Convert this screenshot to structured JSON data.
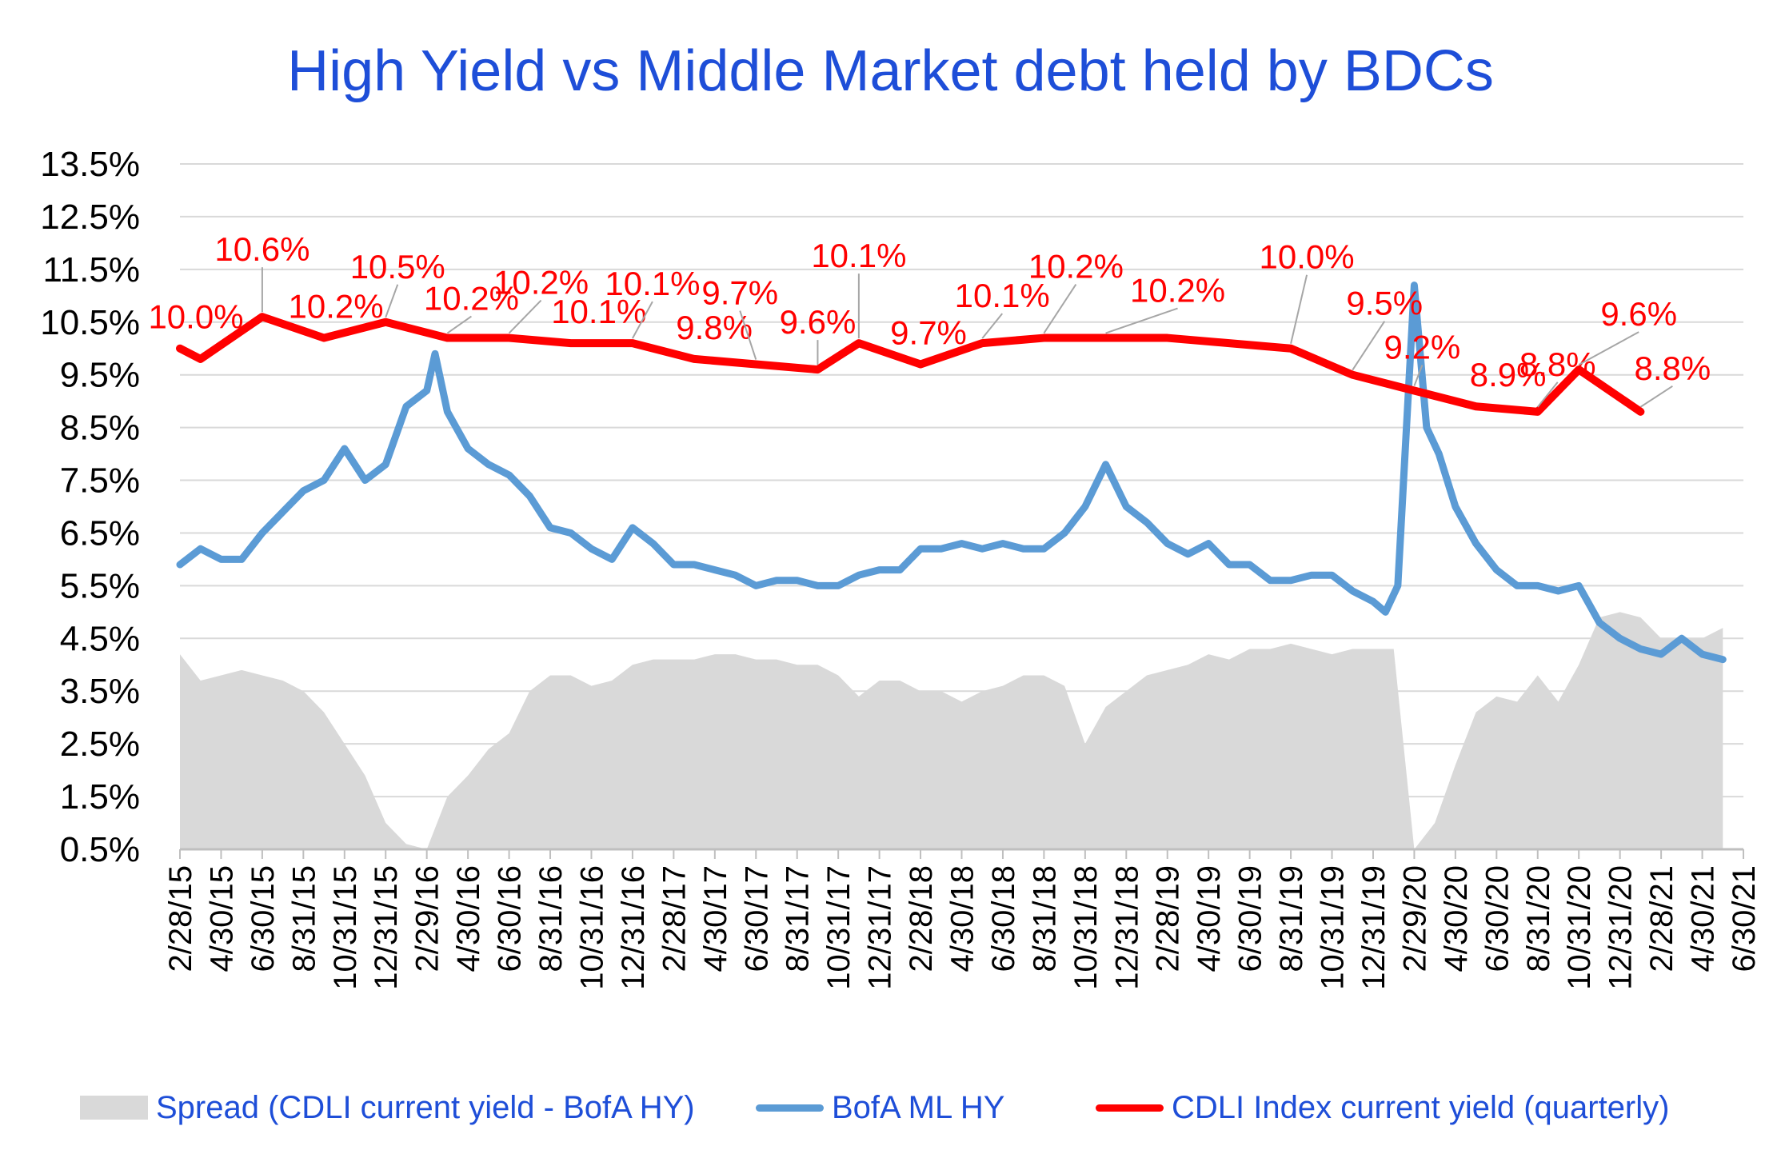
{
  "chart_data": {
    "type": "line",
    "title": "High Yield  vs  Middle Market debt held by BDCs",
    "ylabel": "",
    "xlabel": "",
    "ylim": [
      0.5,
      13.5
    ],
    "yticks": [
      "13.5%",
      "12.5%",
      "11.5%",
      "10.5%",
      "9.5%",
      "8.5%",
      "7.5%",
      "6.5%",
      "5.5%",
      "4.5%",
      "3.5%",
      "2.5%",
      "1.5%",
      "0.5%"
    ],
    "xticks": [
      "2/28/15",
      "4/30/15",
      "6/30/15",
      "8/31/15",
      "10/31/15",
      "12/31/15",
      "2/29/16",
      "4/30/16",
      "6/30/16",
      "8/31/16",
      "10/31/16",
      "12/31/16",
      "2/28/17",
      "4/30/17",
      "6/30/17",
      "8/31/17",
      "10/31/17",
      "12/31/17",
      "2/28/18",
      "4/30/18",
      "6/30/18",
      "8/31/18",
      "10/31/18",
      "12/31/18",
      "2/28/19",
      "4/30/19",
      "6/30/19",
      "8/31/19",
      "10/31/19",
      "12/31/19",
      "2/29/20",
      "4/30/20",
      "6/30/20",
      "8/31/20",
      "10/31/20",
      "12/31/20",
      "2/28/21",
      "4/30/21",
      "6/30/21"
    ],
    "grid": true,
    "legend_position": "bottom",
    "colors": {
      "spread": "#d9d9d9",
      "hy": "#5b9bd5",
      "cdli": "#ff0000"
    },
    "series": [
      {
        "name": "Spread (CDLI current yield - BofA HY)",
        "kind": "area",
        "x": [
          0,
          0.5,
          1,
          1.5,
          2,
          2.5,
          3,
          3.5,
          4,
          4.5,
          5,
          5.5,
          6,
          6.5,
          7,
          7.5,
          8,
          8.5,
          9,
          9.5,
          10,
          10.5,
          11,
          11.5,
          12,
          12.5,
          13,
          13.5,
          14,
          14.5,
          15,
          15.5,
          16,
          16.5,
          17,
          17.5,
          18,
          18.5,
          19,
          19.5,
          20,
          20.5,
          21,
          21.5,
          22,
          22.5,
          23,
          23.5,
          24,
          24.5,
          25,
          25.5,
          26,
          26.5,
          27,
          27.5,
          28,
          28.5,
          29,
          29.5,
          30,
          30.5,
          31,
          31.5,
          32,
          32.5,
          33,
          33.5,
          34,
          34.5,
          35,
          35.5,
          36,
          36.5,
          37,
          37.5
        ],
        "values": [
          4.2,
          3.7,
          3.8,
          3.9,
          3.8,
          3.7,
          3.5,
          3.1,
          2.5,
          1.9,
          1.0,
          0.6,
          0.5,
          1.5,
          1.9,
          2.4,
          2.7,
          3.5,
          3.8,
          3.8,
          3.6,
          3.7,
          4.0,
          4.1,
          4.1,
          4.1,
          4.2,
          4.2,
          4.1,
          4.1,
          4.0,
          4.0,
          3.8,
          3.4,
          3.7,
          3.7,
          3.5,
          3.5,
          3.3,
          3.5,
          3.6,
          3.8,
          3.8,
          3.6,
          2.5,
          3.2,
          3.5,
          3.8,
          3.9,
          4.0,
          4.2,
          4.1,
          4.3,
          4.3,
          4.4,
          4.3,
          4.2,
          4.3,
          4.3,
          4.3,
          0.5,
          1.0,
          2.1,
          3.1,
          3.4,
          3.3,
          3.8,
          3.3,
          4.0,
          4.9,
          5.0,
          4.9,
          4.5,
          4.5,
          4.5,
          4.7
        ]
      },
      {
        "name": "BofA ML HY",
        "kind": "line",
        "x": [
          0,
          0.5,
          1,
          1.5,
          2,
          2.5,
          3,
          3.5,
          4,
          4.5,
          5,
          5.5,
          6,
          6.2,
          6.5,
          7,
          7.5,
          8,
          8.5,
          9,
          9.5,
          10,
          10.5,
          11,
          11.5,
          12,
          12.5,
          13,
          13.5,
          14,
          14.5,
          15,
          15.5,
          16,
          16.5,
          17,
          17.5,
          18,
          18.5,
          19,
          19.5,
          20,
          20.5,
          21,
          21.5,
          22,
          22.5,
          23,
          23.5,
          24,
          24.5,
          25,
          25.5,
          26,
          26.5,
          27,
          27.5,
          28,
          28.5,
          29,
          29.3,
          29.6,
          30,
          30.3,
          30.6,
          31,
          31.5,
          32,
          32.5,
          33,
          33.5,
          34,
          34.5,
          35,
          35.5,
          36,
          36.5,
          37,
          37.5
        ],
        "values": [
          5.9,
          6.2,
          6.0,
          6.0,
          6.5,
          6.9,
          7.3,
          7.5,
          8.1,
          7.5,
          7.8,
          8.9,
          9.2,
          9.9,
          8.8,
          8.1,
          7.8,
          7.6,
          7.2,
          6.6,
          6.5,
          6.2,
          6.0,
          6.6,
          6.3,
          5.9,
          5.9,
          5.8,
          5.7,
          5.5,
          5.6,
          5.6,
          5.5,
          5.5,
          5.7,
          5.8,
          5.8,
          6.2,
          6.2,
          6.3,
          6.2,
          6.3,
          6.2,
          6.2,
          6.5,
          7.0,
          7.8,
          7.0,
          6.7,
          6.3,
          6.1,
          6.3,
          5.9,
          5.9,
          5.6,
          5.6,
          5.7,
          5.7,
          5.4,
          5.2,
          5.0,
          5.5,
          11.2,
          8.5,
          8.0,
          7.0,
          6.3,
          5.8,
          5.5,
          5.5,
          5.4,
          5.5,
          4.8,
          4.5,
          4.3,
          4.2,
          4.5,
          4.2,
          4.1
        ]
      },
      {
        "name": "CDLI Index current yield (quarterly)",
        "kind": "line",
        "x": [
          0,
          0.5,
          2,
          3.5,
          5,
          6.5,
          8,
          9.5,
          11,
          12.5,
          14,
          15.5,
          16.5,
          18,
          19.5,
          21,
          22.5,
          24,
          25.5,
          27,
          28.5,
          30,
          31.5,
          33,
          34,
          35.5
        ],
        "values": [
          10.0,
          9.8,
          10.6,
          10.2,
          10.5,
          10.2,
          10.2,
          10.1,
          10.1,
          9.8,
          9.7,
          9.6,
          10.1,
          9.7,
          10.1,
          10.2,
          10.2,
          10.2,
          10.1,
          10.0,
          9.5,
          9.2,
          8.9,
          8.8,
          9.6,
          8.8
        ],
        "labels": [
          "10.0%",
          "10.6%",
          "10.2%",
          "10.5%",
          "10.2%",
          "10.2%",
          "10.1%",
          "10.1%",
          "9.8%",
          "9.7%",
          "9.6%",
          "10.1%",
          "9.7%",
          "10.1%",
          "10.2%",
          "10.2%",
          "10.0%",
          "9.5%",
          "9.2%",
          "8.9%",
          "8.8%",
          "9.6%",
          "8.8%"
        ],
        "label_x": [
          0,
          2,
          3.5,
          5,
          6.5,
          8,
          9.5,
          11,
          12.5,
          14,
          15.5,
          16.5,
          18,
          19.5,
          21,
          22.5,
          27,
          28.5,
          30,
          31.5,
          33,
          34,
          35.5
        ]
      }
    ]
  },
  "legend": {
    "spread": "Spread (CDLI current yield - BofA HY)",
    "hy": "BofA ML HY",
    "cdli": "CDLI Index current yield (quarterly)"
  }
}
